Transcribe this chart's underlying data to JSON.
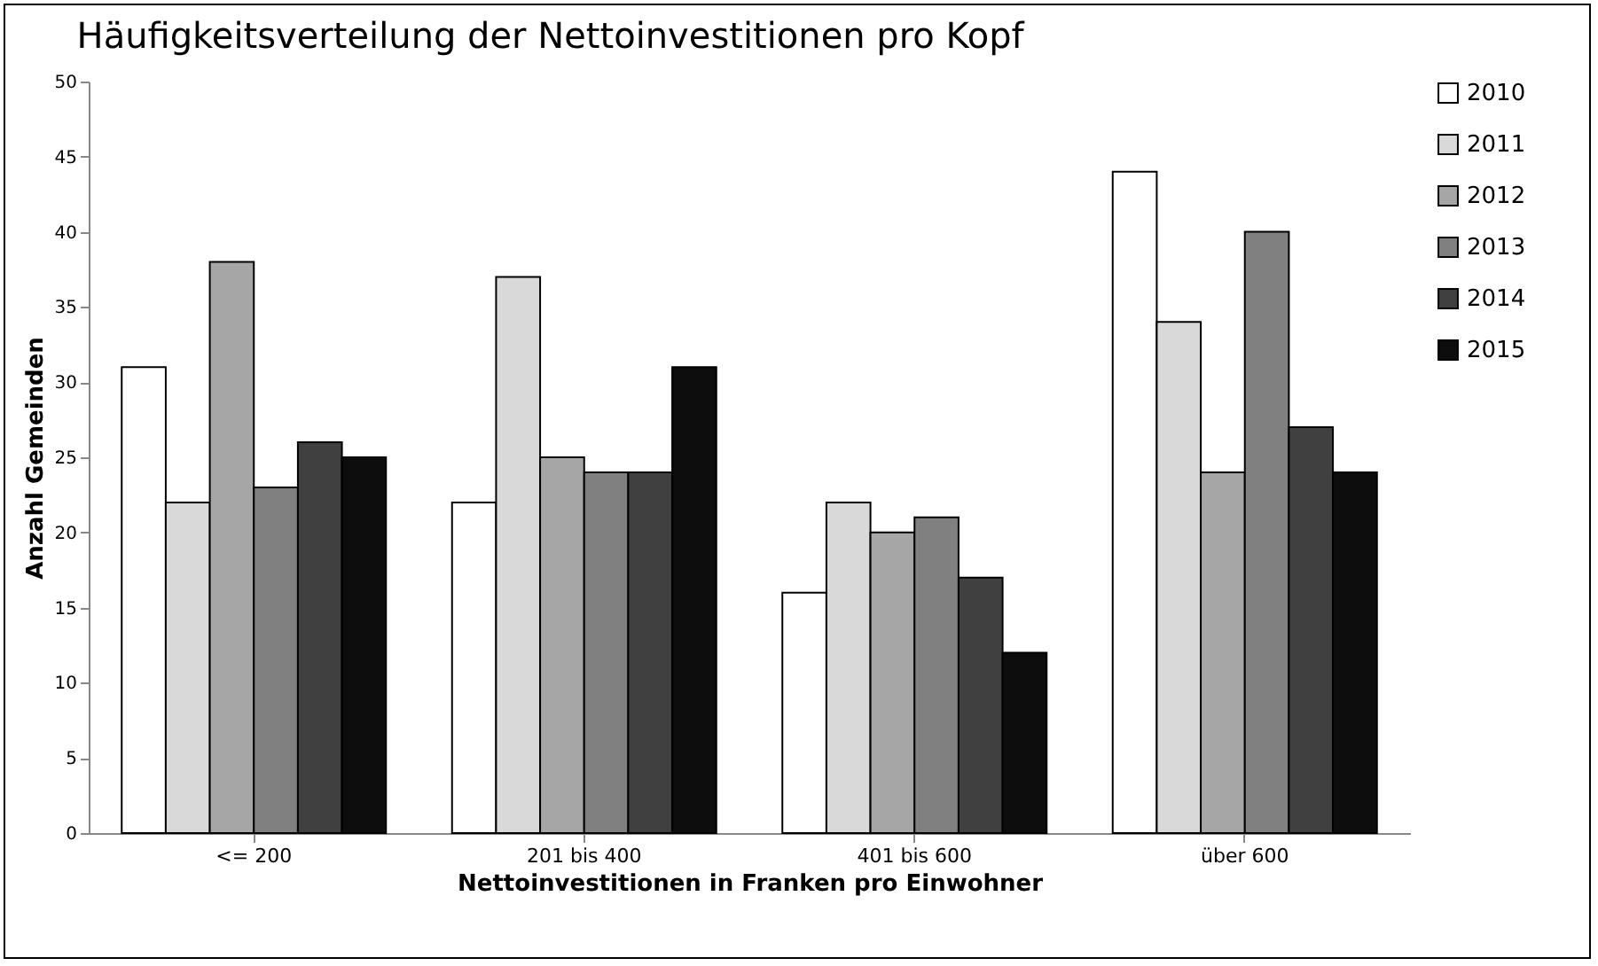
{
  "chart_data": {
    "type": "bar",
    "title": "Häufigkeitsverteilung der Nettoinvestitionen pro Kopf",
    "xlabel": "Nettoinvestitionen in Franken pro Einwohner",
    "ylabel": "Anzahl Gemeinden",
    "categories": [
      "<= 200",
      "201 bis 400",
      "401 bis 600",
      "über 600"
    ],
    "series": [
      {
        "name": "2010",
        "color": "#ffffff",
        "values": [
          31,
          22,
          16,
          44
        ]
      },
      {
        "name": "2011",
        "color": "#d9d9d9",
        "values": [
          22,
          37,
          22,
          34
        ]
      },
      {
        "name": "2012",
        "color": "#a6a6a6",
        "values": [
          38,
          25,
          20,
          24
        ]
      },
      {
        "name": "2013",
        "color": "#808080",
        "values": [
          23,
          24,
          21,
          40
        ]
      },
      {
        "name": "2014",
        "color": "#404040",
        "values": [
          26,
          24,
          17,
          27
        ]
      },
      {
        "name": "2015",
        "color": "#0d0d0d",
        "values": [
          25,
          31,
          12,
          24
        ]
      }
    ],
    "ylim": [
      0,
      50
    ],
    "yticks": [
      0,
      5,
      10,
      15,
      20,
      25,
      30,
      35,
      40,
      45,
      50
    ],
    "grid": false,
    "legend": "right"
  }
}
